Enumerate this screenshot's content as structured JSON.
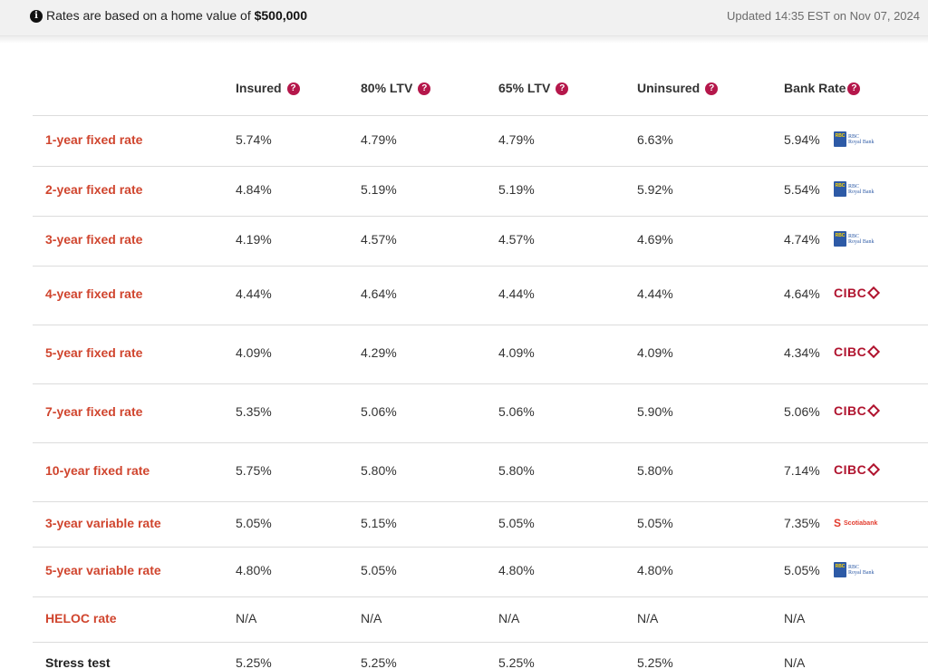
{
  "notice": {
    "text_prefix": "Rates are based on a home value of ",
    "home_value": "$500,000",
    "updated": "Updated 14:35 EST on Nov 07, 2024"
  },
  "columns": [
    {
      "label": "Insured",
      "help": "?"
    },
    {
      "label": "80% LTV",
      "help": "?"
    },
    {
      "label": "65% LTV",
      "help": "?"
    },
    {
      "label": "Uninsured",
      "help": "?"
    },
    {
      "label": "Bank Rate",
      "help": "?"
    }
  ],
  "rows": [
    {
      "label": "1-year fixed rate",
      "values": [
        "5.74%",
        "4.79%",
        "4.79%",
        "6.63%",
        "5.94%"
      ],
      "bank": "rbc"
    },
    {
      "label": "2-year fixed rate",
      "values": [
        "4.84%",
        "5.19%",
        "5.19%",
        "5.92%",
        "5.54%"
      ],
      "bank": "rbc"
    },
    {
      "label": "3-year fixed rate",
      "values": [
        "4.19%",
        "4.57%",
        "4.57%",
        "4.69%",
        "4.74%"
      ],
      "bank": "rbc"
    },
    {
      "label": "4-year fixed rate",
      "values": [
        "4.44%",
        "4.64%",
        "4.44%",
        "4.44%",
        "4.64%"
      ],
      "bank": "cibc"
    },
    {
      "label": "5-year fixed rate",
      "values": [
        "4.09%",
        "4.29%",
        "4.09%",
        "4.09%",
        "4.34%"
      ],
      "bank": "cibc"
    },
    {
      "label": "7-year fixed rate",
      "values": [
        "5.35%",
        "5.06%",
        "5.06%",
        "5.90%",
        "5.06%"
      ],
      "bank": "cibc"
    },
    {
      "label": "10-year fixed rate",
      "values": [
        "5.75%",
        "5.80%",
        "5.80%",
        "5.80%",
        "7.14%"
      ],
      "bank": "cibc"
    },
    {
      "label": "3-year variable rate",
      "values": [
        "5.05%",
        "5.15%",
        "5.05%",
        "5.05%",
        "7.35%"
      ],
      "bank": "scotia"
    },
    {
      "label": "5-year variable rate",
      "values": [
        "4.80%",
        "5.05%",
        "4.80%",
        "4.80%",
        "5.05%"
      ],
      "bank": "rbc"
    },
    {
      "label": "HELOC rate",
      "values": [
        "N/A",
        "N/A",
        "N/A",
        "N/A",
        "N/A"
      ],
      "bank": ""
    },
    {
      "label": "Stress test",
      "values": [
        "5.25%",
        "5.25%",
        "5.25%",
        "5.25%",
        "N/A"
      ],
      "bank": "",
      "style": "dark"
    }
  ],
  "logos": {
    "rbc": {
      "box": "RBC",
      "line1": "RBC",
      "line2": "Royal Bank"
    },
    "cibc": {
      "text": "CIBC"
    },
    "scotia": {
      "mark": "S",
      "text": "Scotiabank"
    }
  },
  "colors": {
    "row_label": "#d0452e",
    "help_badge": "#b5174b",
    "cibc": "#b0132e",
    "rbc": "#2d5aa6",
    "scotia": "#e23b2d"
  }
}
